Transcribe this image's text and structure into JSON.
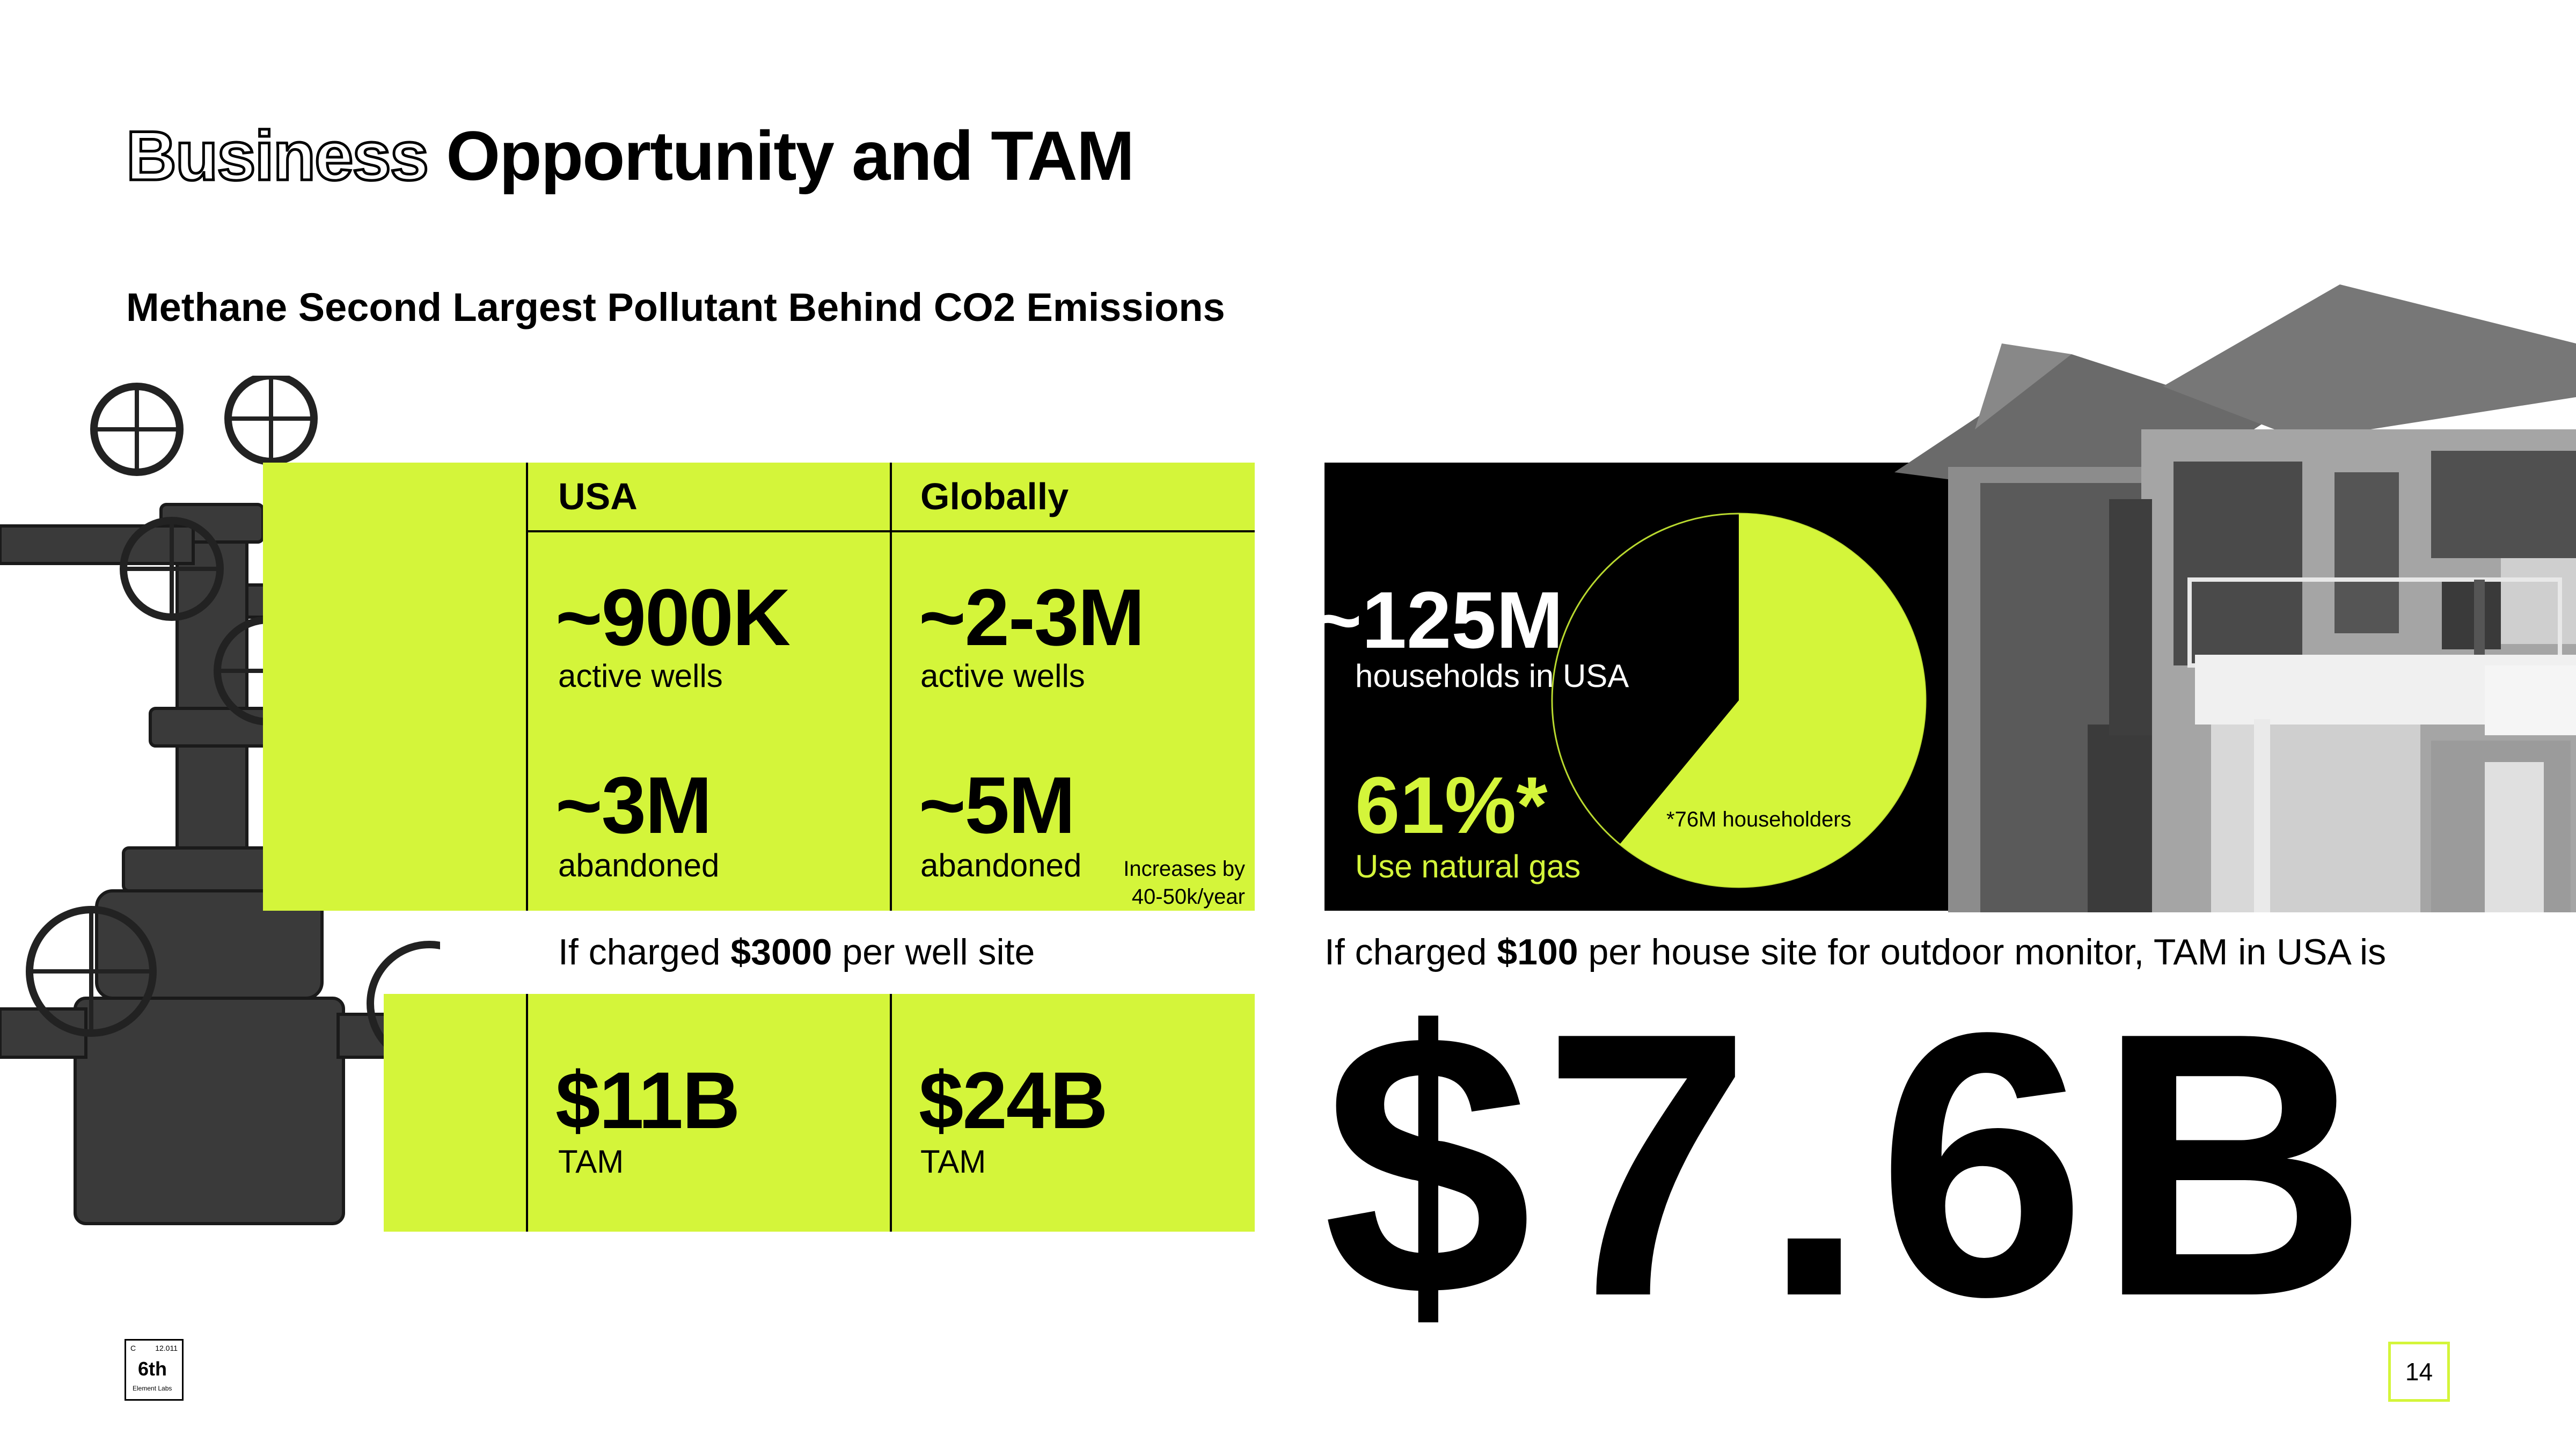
{
  "title": {
    "outline_word": "Business",
    "rest": "Opportunity and TAM"
  },
  "subtitle": "Methane Second Largest Pollutant Behind CO2 Emissions",
  "wells": {
    "col_usa": "USA",
    "col_global": "Globally",
    "usa_active_value": "~900K",
    "usa_active_label": "active wells",
    "global_active_value": "~2-3M",
    "global_active_label": "active wells",
    "usa_abandoned_value": "~3M",
    "usa_abandoned_label": "abandoned",
    "global_abandoned_value": "~5M",
    "global_abandoned_label": "abandoned",
    "increase_note_line1": "Increases by",
    "increase_note_line2": "40-50k/year",
    "charge_prefix": "If charged ",
    "charge_amount": "$3000",
    "charge_suffix": " per well site",
    "usa_tam_value": "$11B",
    "global_tam_value": "$24B",
    "tam_label": "TAM"
  },
  "households": {
    "count_value": "~125M",
    "count_label": "households in USA",
    "gas_pct": "61%*",
    "gas_label": "Use natural gas",
    "pie_note": "*76M householders",
    "pie_share": 0.61,
    "charge_prefix": "If charged ",
    "charge_amount": "$100",
    "charge_suffix": " per house site for outdoor monitor, TAM in USA is",
    "tam_total": "$7.6B"
  },
  "footer": {
    "logo_symbol": "C",
    "logo_mass": "12.011",
    "logo_text": "6th",
    "logo_sub": "Element Labs",
    "page_number": "14"
  },
  "colors": {
    "accent": "#d4f53a",
    "dark": "#000000"
  }
}
